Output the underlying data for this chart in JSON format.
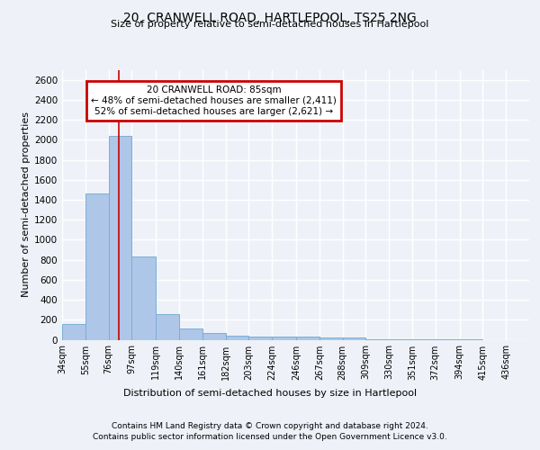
{
  "title_line1": "20, CRANWELL ROAD, HARTLEPOOL, TS25 2NG",
  "title_line2": "Size of property relative to semi-detached houses in Hartlepool",
  "xlabel": "Distribution of semi-detached houses by size in Hartlepool",
  "ylabel": "Number of semi-detached properties",
  "footer_line1": "Contains HM Land Registry data © Crown copyright and database right 2024.",
  "footer_line2": "Contains public sector information licensed under the Open Government Licence v3.0.",
  "annotation_title": "20 CRANWELL ROAD: 85sqm",
  "annotation_line1": "← 48% of semi-detached houses are smaller (2,411)",
  "annotation_line2": "52% of semi-detached houses are larger (2,621) →",
  "property_size_sqm": 85,
  "bin_edges": [
    34,
    55,
    76,
    97,
    119,
    140,
    161,
    182,
    203,
    224,
    246,
    267,
    288,
    309,
    330,
    351,
    372,
    394,
    415,
    436,
    457
  ],
  "bin_counts": [
    155,
    1465,
    2040,
    830,
    255,
    115,
    65,
    38,
    35,
    28,
    28,
    22,
    20,
    8,
    5,
    3,
    2,
    1,
    0,
    0
  ],
  "bar_color": "#aec6e8",
  "bar_edge_color": "#7bafd4",
  "vline_color": "#cc0000",
  "vline_x": 85,
  "annotation_box_color": "#cc0000",
  "annotation_box_fill": "#ffffff",
  "background_color": "#eef2f8",
  "grid_color": "#ffffff",
  "ylim": [
    0,
    2700
  ],
  "yticks": [
    0,
    200,
    400,
    600,
    800,
    1000,
    1200,
    1400,
    1600,
    1800,
    2000,
    2200,
    2400,
    2600
  ]
}
